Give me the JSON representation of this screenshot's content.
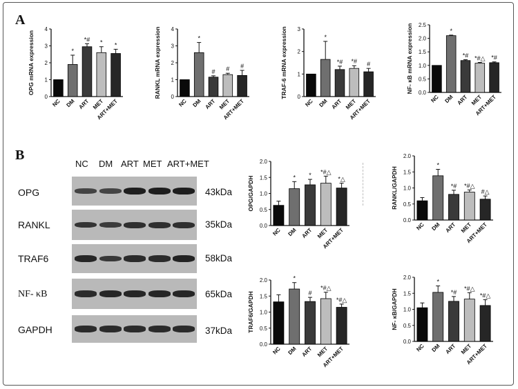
{
  "panels": {
    "a": "A",
    "b": "B"
  },
  "lanes": [
    "NC",
    "DM",
    "ART",
    "MET",
    "ART+MET"
  ],
  "blots": [
    {
      "label": "OPG",
      "kda": "43kDa",
      "intensity": [
        0.55,
        0.55,
        1.0,
        1.0,
        1.0
      ]
    },
    {
      "label": "RANKL",
      "kda": "35kDa",
      "intensity": [
        0.75,
        0.65,
        0.8,
        0.8,
        0.8
      ]
    },
    {
      "label": "TRAF6",
      "kda": "58kDa",
      "intensity": [
        0.9,
        0.7,
        0.85,
        0.85,
        0.95
      ]
    },
    {
      "label": "NF- κB",
      "kda": "65kDa",
      "intensity": [
        0.85,
        0.9,
        0.9,
        0.9,
        0.9
      ]
    },
    {
      "label": "GAPDH",
      "kda": "37kDa",
      "intensity": [
        0.85,
        0.85,
        0.85,
        0.85,
        0.85
      ]
    }
  ],
  "colors": {
    "bar_fills": [
      "#0a0a0a",
      "#6f6f6f",
      "#3a3a3a",
      "#bdbdbd",
      "#262626"
    ],
    "blot_background": "#b9b9b9",
    "band": "#1e1e1e"
  },
  "chart_data": [
    {
      "type": "bar",
      "categories": [
        "NC",
        "DM",
        "ART",
        "MET",
        "ART+MET"
      ],
      "values": [
        1.0,
        1.9,
        2.95,
        2.6,
        2.55
      ],
      "errors": [
        0,
        0.55,
        0.18,
        0.35,
        0.25
      ],
      "annotations": [
        "",
        "*",
        "*#",
        "*",
        "*"
      ],
      "ylabel": "OPG mRNA expression",
      "ylim": [
        0,
        4
      ],
      "yticks": [
        "0",
        "1",
        "2",
        "3",
        "4"
      ]
    },
    {
      "type": "bar",
      "categories": [
        "NC",
        "DM",
        "ART",
        "MET",
        "ART+MET"
      ],
      "values": [
        1.0,
        2.6,
        1.15,
        1.3,
        1.25
      ],
      "errors": [
        0,
        0.6,
        0.08,
        0.08,
        0.3
      ],
      "annotations": [
        "",
        "*",
        "#",
        "#",
        "#"
      ],
      "ylabel": "RANKL mRNA expression",
      "ylim": [
        0,
        4
      ],
      "yticks": [
        "0",
        "1",
        "2",
        "3",
        "4"
      ]
    },
    {
      "type": "bar",
      "categories": [
        "NC",
        "DM",
        "ART",
        "MET",
        "ART+MET"
      ],
      "values": [
        1.0,
        1.65,
        1.2,
        1.25,
        1.1
      ],
      "errors": [
        0,
        0.8,
        0.15,
        0.12,
        0.15
      ],
      "annotations": [
        "",
        "*",
        "*#",
        "*#",
        "#"
      ],
      "ylabel": "TRAF-6 mRNA expression",
      "ylim": [
        0,
        3
      ],
      "yticks": [
        "0",
        "1",
        "2",
        "3"
      ]
    },
    {
      "type": "bar",
      "categories": [
        "NC",
        "DM",
        "ART",
        "MET",
        "ART+MET"
      ],
      "values": [
        1.0,
        2.1,
        1.18,
        1.08,
        1.1
      ],
      "errors": [
        0,
        0.02,
        0.03,
        0.03,
        0.03
      ],
      "annotations": [
        "",
        "*",
        "*#",
        "*#△",
        "*#"
      ],
      "ylabel": "NF- κB mRNA expression",
      "ylim": [
        0,
        2.5
      ],
      "yticks": [
        "0.0",
        "0.5",
        "1.0",
        "1.5",
        "2.0",
        "2.5"
      ]
    },
    {
      "type": "bar",
      "categories": [
        "NC",
        "DM",
        "ART",
        "MET",
        "ART+MET"
      ],
      "values": [
        0.63,
        1.15,
        1.27,
        1.32,
        1.17
      ],
      "errors": [
        0.13,
        0.22,
        0.17,
        0.22,
        0.15
      ],
      "annotations": [
        "",
        "*",
        "*",
        "*#△",
        "*△"
      ],
      "ylabel": "OPG/GAPDH",
      "ylim": [
        0,
        2.0
      ],
      "yticks": [
        "0.0",
        "0.5",
        "1.0",
        "1.5",
        "2.0"
      ]
    },
    {
      "type": "bar",
      "categories": [
        "NC",
        "DM",
        "ART",
        "MET",
        "ART+MET"
      ],
      "values": [
        0.6,
        1.38,
        0.8,
        0.87,
        0.65
      ],
      "errors": [
        0.1,
        0.2,
        0.13,
        0.07,
        0.1
      ],
      "annotations": [
        "",
        "*",
        "*#",
        "*#△",
        "#△"
      ],
      "ylabel": "RANKL/GAPDH",
      "ylim": [
        0,
        2.0
      ],
      "yticks": [
        "0.0",
        "0.5",
        "1.0",
        "1.5",
        "2.0"
      ]
    },
    {
      "type": "bar",
      "categories": [
        "NC",
        "DM",
        "ART",
        "MET",
        "ART+MET"
      ],
      "values": [
        1.32,
        1.72,
        1.33,
        1.42,
        1.15
      ],
      "errors": [
        0.22,
        0.2,
        0.13,
        0.2,
        0.1
      ],
      "annotations": [
        "",
        "*",
        "#",
        "*#△",
        "*#△"
      ],
      "ylabel": "TRAF6/GAPDH",
      "ylim": [
        0,
        2.0
      ],
      "yticks": [
        "0.0",
        "0.5",
        "1.0",
        "1.5",
        "2.0"
      ]
    },
    {
      "type": "bar",
      "categories": [
        "NC",
        "DM",
        "ART",
        "MET",
        "ART+MET"
      ],
      "values": [
        1.05,
        1.53,
        1.25,
        1.32,
        1.12
      ],
      "errors": [
        0.15,
        0.2,
        0.15,
        0.2,
        0.18
      ],
      "annotations": [
        "",
        "*",
        "*#",
        "*#△",
        "*#△"
      ],
      "ylabel": "NF- κB/GAPDH",
      "ylim": [
        0,
        2.0
      ],
      "yticks": [
        "0.0",
        "0.5",
        "1.0",
        "1.5",
        "2.0"
      ]
    }
  ]
}
